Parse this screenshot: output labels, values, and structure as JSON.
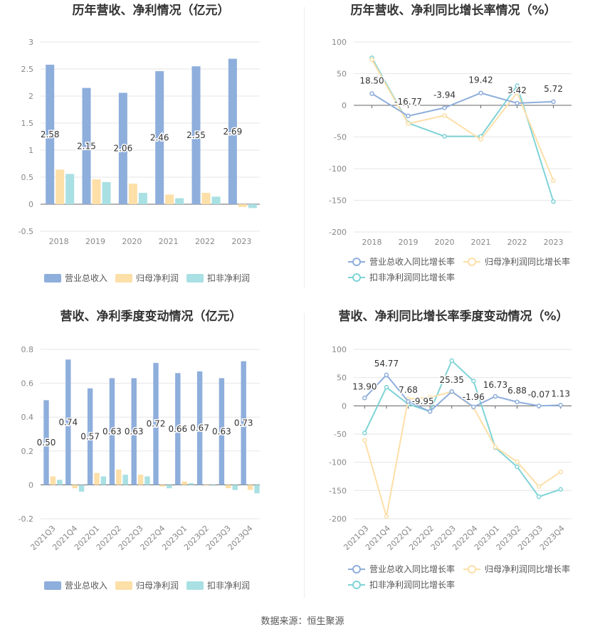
{
  "source": "数据来源：恒生聚源",
  "colors": {
    "revenue": "#8eaedc",
    "netprofit": "#fddfa8",
    "deducted": "#a9e0e3",
    "revenue_line": "#8eaedc",
    "netprofit_line": "#fddfa8",
    "deducted_line": "#7fd3d6",
    "grid": "#e6e6e6",
    "axis_text": "#888888",
    "title": "#333333"
  },
  "chart_data": [
    {
      "type": "bar",
      "title": "历年营收、净利情况（亿元）",
      "categories": [
        "2018",
        "2019",
        "2020",
        "2021",
        "2022",
        "2023"
      ],
      "ylim": [
        -0.5,
        3
      ],
      "yticks": [
        "-0.5",
        "0",
        "0.5",
        "1",
        "1.5",
        "2",
        "2.5",
        "3"
      ],
      "grid": true,
      "legend_position": "bottom",
      "series": [
        {
          "name": "营业总收入",
          "values": [
            2.58,
            2.15,
            2.06,
            2.46,
            2.55,
            2.69
          ],
          "labels": [
            "2.58",
            "2.15",
            "2.06",
            "2.46",
            "2.55",
            "2.69"
          ]
        },
        {
          "name": "归母净利润",
          "values": [
            0.64,
            0.46,
            0.38,
            0.18,
            0.21,
            -0.05
          ]
        },
        {
          "name": "扣非净利润",
          "values": [
            0.56,
            0.41,
            0.21,
            0.11,
            0.14,
            -0.07
          ]
        }
      ]
    },
    {
      "type": "line",
      "title": "历年营收、净利同比增长率情况（%）",
      "categories": [
        "2018",
        "2019",
        "2020",
        "2021",
        "2022",
        "2023"
      ],
      "ylim": [
        -200,
        100
      ],
      "yticks": [
        "-200",
        "-150",
        "-100",
        "-50",
        "0",
        "50",
        "100"
      ],
      "grid": true,
      "legend_position": "bottom",
      "series": [
        {
          "name": "营业总收入同比增长率",
          "values": [
            18.5,
            -16.77,
            -3.94,
            19.42,
            3.42,
            5.72
          ],
          "labels": [
            "18.50",
            "-16.77",
            "-3.94",
            "19.42",
            "3.42",
            "5.72"
          ]
        },
        {
          "name": "归母净利润同比增长率",
          "values": [
            72,
            -29,
            -16,
            -54,
            20,
            -119
          ]
        },
        {
          "name": "扣非净利润同比增长率",
          "values": [
            75,
            -28,
            -49,
            -49,
            31,
            -152
          ]
        }
      ]
    },
    {
      "type": "bar",
      "title": "营收、净利季度变动情况（亿元）",
      "categories": [
        "2021Q3",
        "2021Q4",
        "2022Q1",
        "2022Q2",
        "2022Q3",
        "2022Q4",
        "2023Q1",
        "2023Q2",
        "2023Q3",
        "2023Q4"
      ],
      "ylim": [
        -0.2,
        0.8
      ],
      "yticks": [
        "-0.2",
        "0",
        "0.2",
        "0.4",
        "0.6",
        "0.8"
      ],
      "grid": true,
      "legend_position": "bottom",
      "series": [
        {
          "name": "营业总收入",
          "values": [
            0.5,
            0.74,
            0.57,
            0.63,
            0.63,
            0.72,
            0.66,
            0.67,
            0.63,
            0.73
          ],
          "labels": [
            "0.50",
            "0.74",
            "0.57",
            "0.63",
            "0.63",
            "0.72",
            "0.66",
            "0.67",
            "0.63",
            "0.73"
          ]
        },
        {
          "name": "归母净利润",
          "values": [
            0.05,
            -0.02,
            0.07,
            0.09,
            0.06,
            -0.01,
            0.02,
            -0.003,
            -0.02,
            -0.03
          ]
        },
        {
          "name": "扣非净利润",
          "values": [
            0.03,
            -0.04,
            0.05,
            0.06,
            0.05,
            -0.02,
            0.01,
            -0.005,
            -0.03,
            -0.05
          ]
        }
      ]
    },
    {
      "type": "line",
      "title": "营收、净利同比增长率季度变动情况（%）",
      "categories": [
        "2021Q3",
        "2021Q4",
        "2022Q1",
        "2022Q2",
        "2022Q3",
        "2022Q4",
        "2023Q1",
        "2023Q2",
        "2023Q3",
        "2023Q4"
      ],
      "ylim": [
        -200,
        100
      ],
      "yticks": [
        "-200",
        "-150",
        "-100",
        "-50",
        "0",
        "50",
        "100"
      ],
      "grid": true,
      "legend_position": "bottom",
      "series": [
        {
          "name": "营业总收入同比增长率",
          "values": [
            13.9,
            54.77,
            7.68,
            -9.95,
            25.35,
            -1.96,
            16.73,
            6.88,
            -0.07,
            1.13
          ],
          "labels": [
            "13.90",
            "54.77",
            "7.68",
            "-9.95",
            "25.35",
            "-1.96",
            "16.73",
            "6.88",
            "-0.07",
            "1.13"
          ]
        },
        {
          "name": "归母净利润同比增长率",
          "values": [
            -61,
            -196,
            12,
            15,
            25,
            -3,
            -73,
            -99,
            -143,
            -117
          ]
        },
        {
          "name": "扣非净利润同比增长率",
          "values": [
            -48,
            33,
            3,
            -10,
            80,
            44,
            -74,
            -108,
            -161,
            -148
          ]
        }
      ]
    }
  ]
}
